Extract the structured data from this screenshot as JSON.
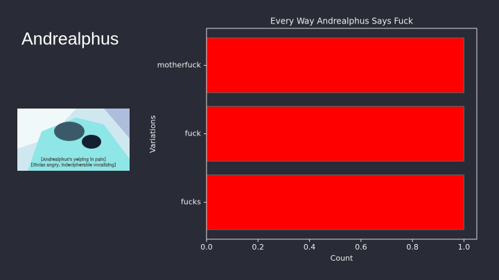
{
  "slide_title": "Andrealphus",
  "image": {
    "caption": [
      "[Andrealphus's yelping in pain]",
      "[Stolas angry, indecipherable vocalizing]"
    ]
  },
  "chart_data": {
    "type": "barh",
    "title": "Every Way Andrealphus Says Fuck",
    "categories": [
      "motherfuck",
      "fuck",
      "fucks"
    ],
    "values": [
      1,
      1,
      1
    ],
    "color": "#ff0000",
    "xlabel": "Count",
    "ylabel": "Variations",
    "xlim": [
      0,
      1.05
    ],
    "xticks": [
      {
        "value": 0,
        "label": "0.0"
      },
      0.2,
      0.4,
      0.6,
      0.8,
      {
        "value": 1,
        "label": "1.0"
      }
    ]
  }
}
